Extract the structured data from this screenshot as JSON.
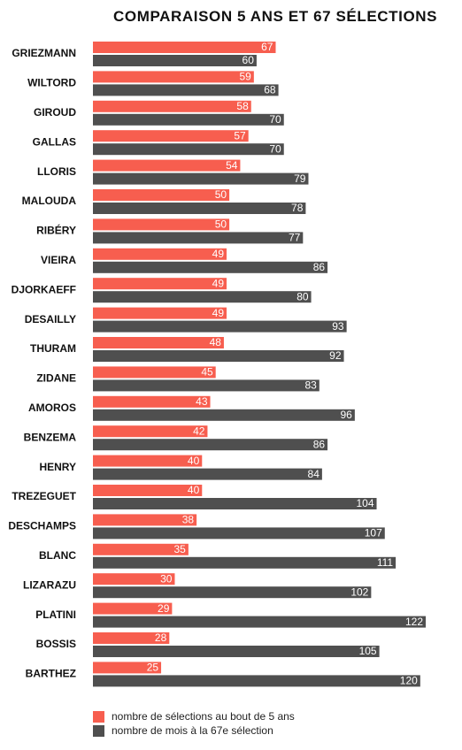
{
  "chart_data": {
    "type": "bar",
    "orientation": "horizontal",
    "title": "COMPARAISON 5 ANS ET 67 SÉLECTIONS",
    "categories": [
      "GRIEZMANN",
      "WILTORD",
      "GIROUD",
      "GALLAS",
      "LLORIS",
      "MALOUDA",
      "RIBÉRY",
      "VIEIRA",
      "DJORKAEFF",
      "DESAILLY",
      "THURAM",
      "ZIDANE",
      "AMOROS",
      "BENZEMA",
      "HENRY",
      "TREZEGUET",
      "DESCHAMPS",
      "BLANC",
      "LIZARAZU",
      "PLATINI",
      "BOSSIS",
      "BARTHEZ"
    ],
    "series": [
      {
        "name": "nombre de sélections au bout de 5 ans",
        "color": "#f75e4f",
        "values": [
          67,
          59,
          58,
          57,
          54,
          50,
          50,
          49,
          49,
          49,
          48,
          45,
          43,
          42,
          40,
          40,
          38,
          35,
          30,
          29,
          28,
          25
        ]
      },
      {
        "name": "nombre de mois à la 67e sélection",
        "color": "#4f4f4f",
        "values": [
          60,
          68,
          70,
          70,
          79,
          78,
          77,
          86,
          80,
          93,
          92,
          83,
          96,
          86,
          84,
          104,
          107,
          111,
          102,
          122,
          105,
          120
        ]
      }
    ],
    "xlim": [
      0,
      122
    ],
    "grid": false,
    "legend_position": "bottom-left"
  }
}
